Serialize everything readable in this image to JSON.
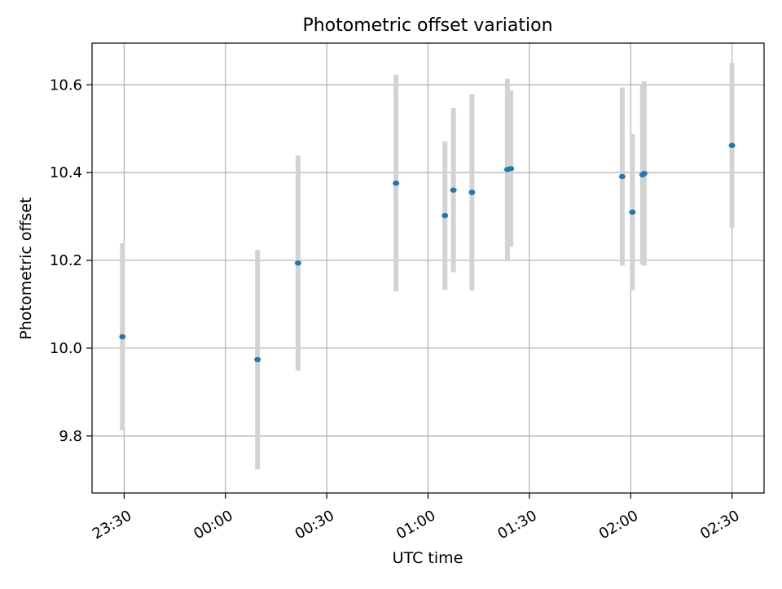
{
  "chart_data": {
    "type": "scatter",
    "title": "Photometric offset variation",
    "xlabel": "UTC time",
    "ylabel": "Photometric offset",
    "x_type": "time",
    "xlim": [
      "23:20:30",
      "02:39:30"
    ],
    "ylim": [
      9.67,
      10.695
    ],
    "grid": true,
    "legend": "none",
    "marker_color": "#1f77b4",
    "errorbar_color": "#d3d3d3",
    "x_ticks": [
      "23:30",
      "00:00",
      "00:30",
      "01:00",
      "01:30",
      "02:00",
      "02:30"
    ],
    "y_ticks": [
      "9.8",
      "10.0",
      "10.2",
      "10.4",
      "10.6"
    ],
    "points": [
      {
        "x": "23:29:30",
        "y": 10.026,
        "err": 0.213
      },
      {
        "x": "00:09:30",
        "y": 9.974,
        "err": 0.25
      },
      {
        "x": "00:21:30",
        "y": 10.194,
        "err": 0.245
      },
      {
        "x": "00:50:30",
        "y": 10.376,
        "err": 0.247
      },
      {
        "x": "01:05:00",
        "y": 10.302,
        "err": 0.169
      },
      {
        "x": "01:07:30",
        "y": 10.36,
        "err": 0.187
      },
      {
        "x": "01:13:00",
        "y": 10.355,
        "err": 0.224
      },
      {
        "x": "01:23:30",
        "y": 10.407,
        "err": 0.207
      },
      {
        "x": "01:24:30",
        "y": 10.409,
        "err": 0.178
      },
      {
        "x": "01:57:30",
        "y": 10.391,
        "err": 0.203
      },
      {
        "x": "02:00:30",
        "y": 10.31,
        "err": 0.178
      },
      {
        "x": "02:03:30",
        "y": 10.395,
        "err": 0.205
      },
      {
        "x": "02:04:00",
        "y": 10.398,
        "err": 0.21
      },
      {
        "x": "02:30:00",
        "y": 10.462,
        "err": 0.188
      }
    ]
  }
}
